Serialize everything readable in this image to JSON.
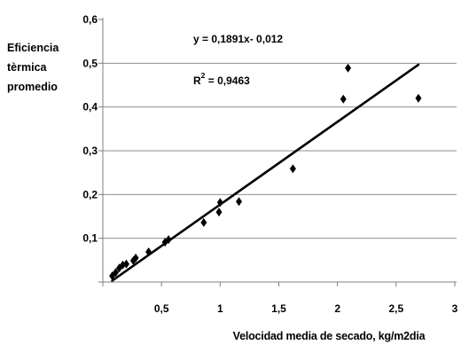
{
  "chart_data": {
    "type": "scatter",
    "xlabel": "Velocidad media de secado, kg/m2dia",
    "ylabel_lines": [
      "Eficiencia",
      "tèrmica",
      "promedio"
    ],
    "xlim": [
      0,
      3
    ],
    "ylim": [
      0,
      0.6
    ],
    "x_ticks": {
      "values": [
        0.5,
        1,
        1.5,
        2,
        2.5,
        3
      ],
      "labels": [
        "0,5",
        "1",
        "1,5",
        "2",
        "2,5",
        "3"
      ]
    },
    "y_ticks": {
      "values": [
        0.6,
        0.5,
        0.4,
        0.3,
        0.2,
        0.1
      ],
      "labels": [
        "0,6",
        "0,5",
        "0,4",
        "0,3",
        "0,2",
        "0,1"
      ]
    },
    "grid": {
      "horizontal": true,
      "vertical": false,
      "values": [
        0.1,
        0.2,
        0.3,
        0.4,
        0.5
      ]
    },
    "series": [
      {
        "color": "#000000",
        "x": [
          0.08,
          0.11,
          0.14,
          0.17,
          0.2,
          0.26,
          0.28,
          0.39,
          0.53,
          0.56,
          0.86,
          0.99,
          1.0,
          1.16,
          1.62,
          2.05,
          2.09,
          2.69
        ],
        "y": [
          0.014,
          0.022,
          0.032,
          0.039,
          0.041,
          0.049,
          0.055,
          0.069,
          0.091,
          0.097,
          0.136,
          0.16,
          0.182,
          0.184,
          0.259,
          0.418,
          0.489,
          0.42
        ]
      }
    ],
    "trendline": {
      "slope": 0.1891,
      "intercept": -0.012,
      "x_range": [
        0.08,
        2.69
      ],
      "color": "#000000",
      "equation": "y = 0,1891x- 0,012",
      "r_squared": {
        "base": "R",
        "sup": "2",
        "rest": " = 0,9463"
      }
    },
    "colors": {
      "gridline": "#8f8f8f",
      "axis": "#7f7f7f",
      "text": "#000000",
      "background": "#ffffff"
    }
  }
}
